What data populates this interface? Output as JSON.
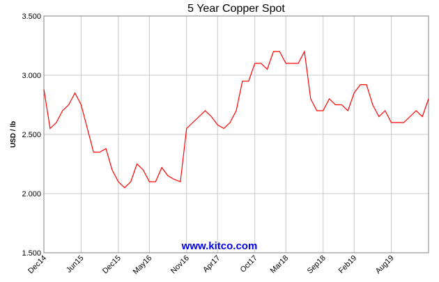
{
  "chart_data": {
    "type": "line",
    "title": "5 Year Copper Spot",
    "y_label": "USD / lb",
    "watermark": "www.kitco.com",
    "x": [
      "2014-12",
      "2015-01",
      "2015-02",
      "2015-03",
      "2015-04",
      "2015-05",
      "2015-06",
      "2015-07",
      "2015-08",
      "2015-09",
      "2015-10",
      "2015-11",
      "2015-12",
      "2016-01",
      "2016-02",
      "2016-03",
      "2016-04",
      "2016-05",
      "2016-06",
      "2016-07",
      "2016-08",
      "2016-09",
      "2016-10",
      "2016-11",
      "2016-12",
      "2017-01",
      "2017-02",
      "2017-03",
      "2017-04",
      "2017-05",
      "2017-06",
      "2017-07",
      "2017-08",
      "2017-09",
      "2017-10",
      "2017-11",
      "2017-12",
      "2018-01",
      "2018-02",
      "2018-03",
      "2018-04",
      "2018-05",
      "2018-06",
      "2018-07",
      "2018-08",
      "2018-09",
      "2018-10",
      "2018-11",
      "2018-12",
      "2019-01",
      "2019-02",
      "2019-03",
      "2019-04",
      "2019-05",
      "2019-06",
      "2019-07",
      "2019-08",
      "2019-09",
      "2019-10",
      "2019-11",
      "2019-12",
      "2020-01",
      "2020-02"
    ],
    "series": [
      {
        "name": "Copper",
        "color": "#ff0000",
        "values": [
          2.88,
          2.55,
          2.6,
          2.7,
          2.75,
          2.85,
          2.75,
          2.55,
          2.35,
          2.35,
          2.38,
          2.2,
          2.1,
          2.05,
          2.1,
          2.25,
          2.2,
          2.1,
          2.1,
          2.22,
          2.15,
          2.12,
          2.1,
          2.55,
          2.6,
          2.65,
          2.7,
          2.65,
          2.58,
          2.55,
          2.6,
          2.7,
          2.95,
          2.95,
          3.1,
          3.1,
          3.05,
          3.2,
          3.2,
          3.1,
          3.1,
          3.1,
          3.2,
          2.8,
          2.7,
          2.7,
          2.8,
          2.75,
          2.75,
          2.7,
          2.85,
          2.92,
          2.92,
          2.75,
          2.65,
          2.7,
          2.6,
          2.6,
          2.6,
          2.65,
          2.7,
          2.65,
          2.8
        ]
      }
    ],
    "xlim": [
      "2014-12",
      "2020-02"
    ],
    "xticks": [
      {
        "value": "2014-12",
        "label": "Dec14"
      },
      {
        "value": "2015-06",
        "label": "Jun15"
      },
      {
        "value": "2015-12",
        "label": "Dec15"
      },
      {
        "value": "2016-05",
        "label": "May16"
      },
      {
        "value": "2016-11",
        "label": "Nov16"
      },
      {
        "value": "2017-04",
        "label": "Apr17"
      },
      {
        "value": "2017-10",
        "label": "Oct17"
      },
      {
        "value": "2018-03",
        "label": "Mar18"
      },
      {
        "value": "2018-09",
        "label": "Sep18"
      },
      {
        "value": "2019-02",
        "label": "Feb19"
      },
      {
        "value": "2019-08",
        "label": "Aug19"
      }
    ],
    "ylim": [
      1.5,
      3.5
    ],
    "yticks": [
      {
        "value": 1.5,
        "label": "1.500"
      },
      {
        "value": 2,
        "label": "2.000"
      },
      {
        "value": 2.5,
        "label": "2.500"
      },
      {
        "value": 3,
        "label": "3.000"
      },
      {
        "value": 3.5,
        "label": "3.500"
      }
    ],
    "grid": true
  }
}
